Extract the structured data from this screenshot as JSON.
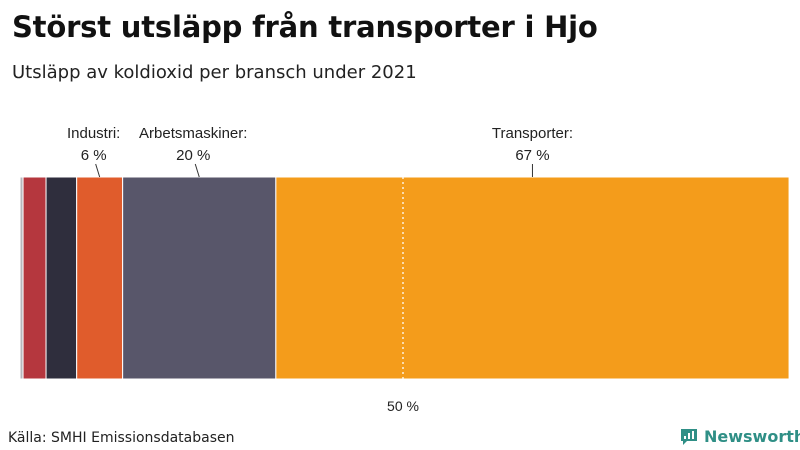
{
  "header": {
    "title": "Störst utsläpp från transporter i Hjo",
    "subtitle": "Utsläpp av koldioxid per bransch under 2021"
  },
  "footer": {
    "source": "Källa: SMHI Emissionsdatabasen",
    "brand": "Newsworthy",
    "brand_icon": "newsworthy-logo-icon",
    "brand_color": "#2f8f86"
  },
  "chart_data": {
    "type": "bar",
    "orientation": "horizontal-stacked",
    "xlim": [
      0,
      100
    ],
    "marker": {
      "value": 50,
      "label": "50 %"
    },
    "segments": [
      {
        "value": 0.4,
        "color": "#b7b7bd"
      },
      {
        "value": 3,
        "color": "#b5373e"
      },
      {
        "value": 4,
        "color": "#2f2e3d"
      },
      {
        "value": 6,
        "color": "#e05c2c",
        "label": "Industri:",
        "value_label": "6 %"
      },
      {
        "value": 20,
        "color": "#58566a",
        "label": "Arbetsmaskiner:",
        "value_label": "20 %"
      },
      {
        "value": 67,
        "color": "#f49c1b",
        "label": "Transporter:",
        "value_label": "67 %"
      }
    ]
  }
}
